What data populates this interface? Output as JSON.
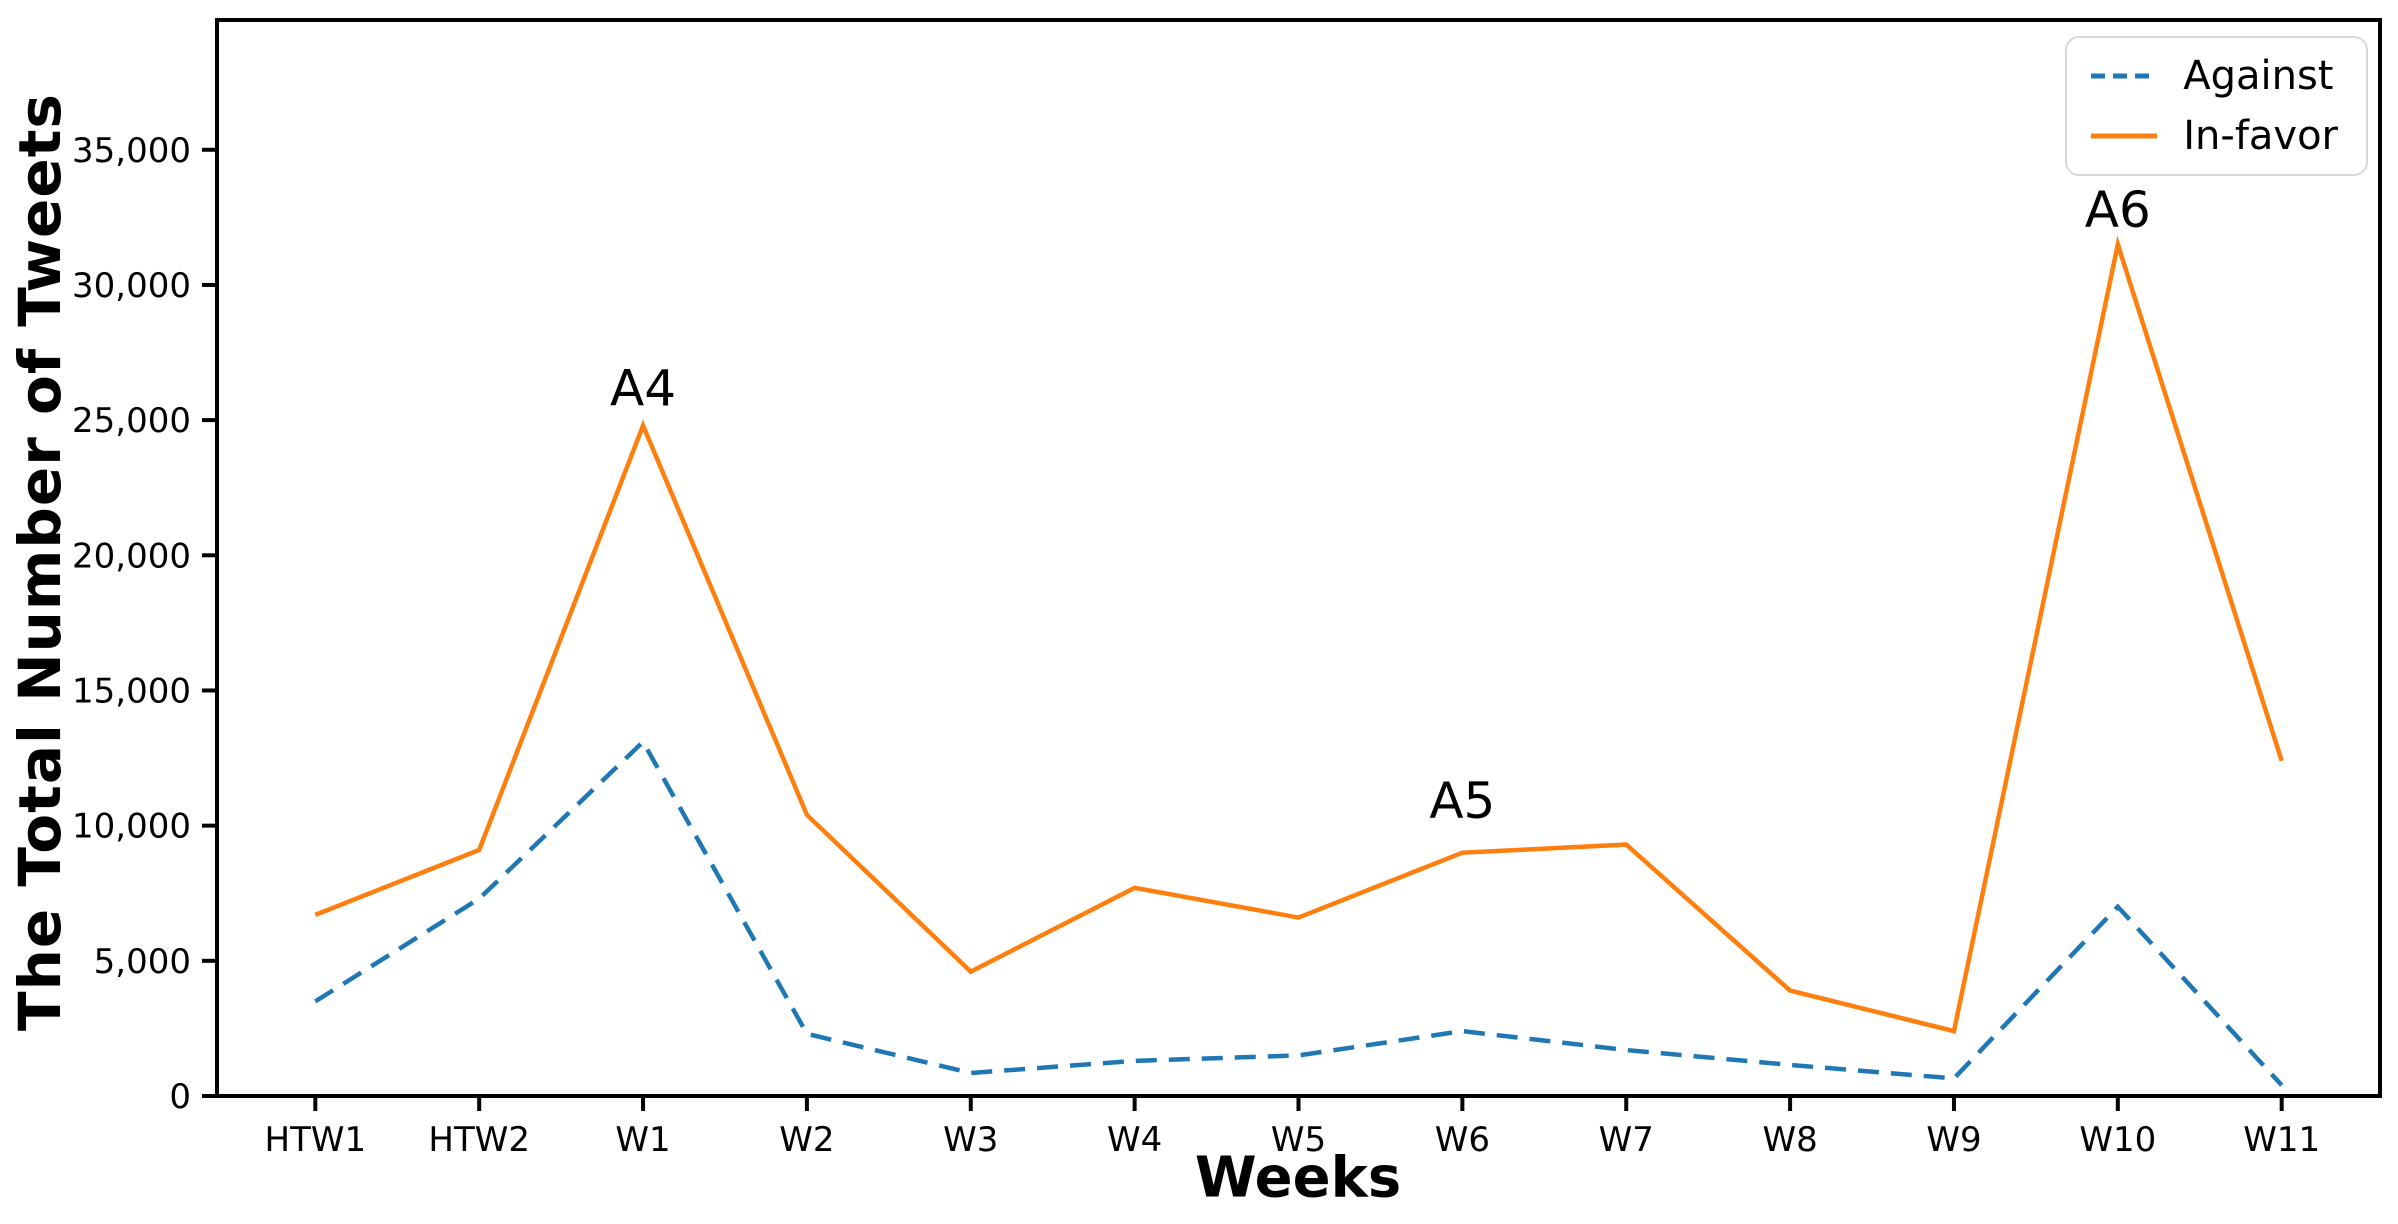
{
  "figure": {
    "background": "#ffffff"
  },
  "legend": {
    "position": "upper-right",
    "items": [
      {
        "label": "Against",
        "color": "#1f77b4",
        "dashed": true
      },
      {
        "label": "In-favor",
        "color": "#ff7f0e",
        "dashed": false
      }
    ]
  },
  "chart_data": {
    "type": "line",
    "title": "",
    "xlabel": "Weeks",
    "ylabel": "The Total Number of Tweets",
    "categories": [
      "HTW1",
      "HTW2",
      "W1",
      "W2",
      "W3",
      "W4",
      "W5",
      "W6",
      "W7",
      "W8",
      "W9",
      "W10",
      "W11"
    ],
    "series": [
      {
        "name": "Against",
        "color": "#1f77b4",
        "style": "dashed",
        "values": [
          3500,
          7300,
          13100,
          2300,
          850,
          1300,
          1500,
          2400,
          1700,
          1150,
          650,
          7000,
          400
        ]
      },
      {
        "name": "In-favor",
        "color": "#ff7f0e",
        "style": "solid",
        "values": [
          6700,
          9100,
          24800,
          10400,
          4600,
          7700,
          6600,
          9000,
          9300,
          3900,
          2400,
          31500,
          12400
        ]
      }
    ],
    "ylim": [
      0,
      39800
    ],
    "yticks": [
      0,
      5000,
      10000,
      15000,
      20000,
      25000,
      30000,
      35000
    ],
    "ytick_labels": [
      "0",
      "5,000",
      "10,000",
      "15,000",
      "20,000",
      "25,000",
      "30,000",
      "35,000"
    ],
    "grid": false,
    "legend_position": "upper right",
    "annotations": [
      {
        "text": "A4",
        "category": "W1",
        "y": 26200
      },
      {
        "text": "A5",
        "category": "W6",
        "y": 10950
      },
      {
        "text": "A6",
        "category": "W10",
        "y": 32800
      }
    ],
    "axis_color": "#000000"
  }
}
